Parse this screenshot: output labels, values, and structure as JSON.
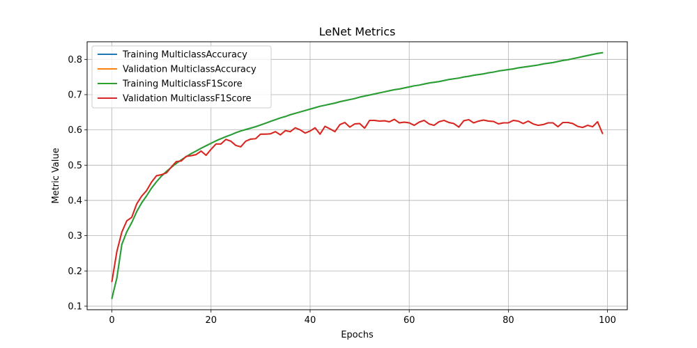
{
  "chart_data": {
    "type": "line",
    "title": "LeNet Metrics",
    "xlabel": "Epochs",
    "ylabel": "Metric Value",
    "xlim": [
      -5,
      104
    ],
    "ylim": [
      0.09,
      0.85
    ],
    "xticks": [
      0,
      20,
      40,
      60,
      80,
      100
    ],
    "yticks": [
      0.1,
      0.2,
      0.3,
      0.4,
      0.5,
      0.6,
      0.7,
      0.8
    ],
    "grid": true,
    "legend_position": "top-left",
    "x": [
      0,
      1,
      2,
      3,
      4,
      5,
      6,
      7,
      8,
      9,
      10,
      11,
      12,
      13,
      14,
      15,
      16,
      17,
      18,
      19,
      20,
      21,
      22,
      23,
      24,
      25,
      26,
      27,
      28,
      29,
      30,
      31,
      32,
      33,
      34,
      35,
      36,
      37,
      38,
      39,
      40,
      41,
      42,
      43,
      44,
      45,
      46,
      47,
      48,
      49,
      50,
      51,
      52,
      53,
      54,
      55,
      56,
      57,
      58,
      59,
      60,
      61,
      62,
      63,
      64,
      65,
      66,
      67,
      68,
      69,
      70,
      71,
      72,
      73,
      74,
      75,
      76,
      77,
      78,
      79,
      80,
      81,
      82,
      83,
      84,
      85,
      86,
      87,
      88,
      89,
      90,
      91,
      92,
      93,
      94,
      95,
      96,
      97,
      98,
      99
    ],
    "series": [
      {
        "name": "Training MulticlassAccuracy",
        "color": "#1f77b4",
        "values": [
          0.122,
          0.18,
          0.275,
          0.311,
          0.337,
          0.368,
          0.393,
          0.413,
          0.435,
          0.453,
          0.469,
          0.482,
          0.494,
          0.505,
          0.515,
          0.524,
          0.533,
          0.54,
          0.548,
          0.555,
          0.562,
          0.569,
          0.575,
          0.581,
          0.586,
          0.592,
          0.597,
          0.601,
          0.605,
          0.609,
          0.614,
          0.619,
          0.624,
          0.629,
          0.634,
          0.638,
          0.643,
          0.647,
          0.651,
          0.655,
          0.659,
          0.663,
          0.667,
          0.67,
          0.673,
          0.676,
          0.68,
          0.683,
          0.686,
          0.689,
          0.693,
          0.696,
          0.699,
          0.702,
          0.705,
          0.708,
          0.711,
          0.714,
          0.716,
          0.719,
          0.722,
          0.725,
          0.727,
          0.73,
          0.733,
          0.735,
          0.737,
          0.74,
          0.743,
          0.745,
          0.747,
          0.75,
          0.752,
          0.755,
          0.757,
          0.759,
          0.762,
          0.764,
          0.767,
          0.769,
          0.771,
          0.773,
          0.776,
          0.778,
          0.78,
          0.782,
          0.784,
          0.787,
          0.789,
          0.791,
          0.794,
          0.797,
          0.799,
          0.802,
          0.805,
          0.808,
          0.811,
          0.814,
          0.817,
          0.819
        ]
      },
      {
        "name": "Validation MulticlassAccuracy",
        "color": "#ff7f0e",
        "values": [
          0.17,
          0.255,
          0.31,
          0.342,
          0.352,
          0.39,
          0.412,
          0.428,
          0.452,
          0.47,
          0.473,
          0.478,
          0.495,
          0.51,
          0.512,
          0.525,
          0.527,
          0.53,
          0.54,
          0.528,
          0.545,
          0.56,
          0.56,
          0.573,
          0.568,
          0.556,
          0.552,
          0.568,
          0.574,
          0.575,
          0.588,
          0.588,
          0.589,
          0.595,
          0.586,
          0.598,
          0.595,
          0.606,
          0.6,
          0.591,
          0.597,
          0.606,
          0.588,
          0.61,
          0.603,
          0.595,
          0.615,
          0.621,
          0.608,
          0.617,
          0.618,
          0.605,
          0.627,
          0.627,
          0.625,
          0.626,
          0.623,
          0.63,
          0.62,
          0.622,
          0.62,
          0.613,
          0.622,
          0.627,
          0.617,
          0.613,
          0.623,
          0.627,
          0.621,
          0.618,
          0.608,
          0.626,
          0.629,
          0.62,
          0.625,
          0.628,
          0.625,
          0.624,
          0.617,
          0.62,
          0.62,
          0.627,
          0.625,
          0.618,
          0.625,
          0.617,
          0.613,
          0.615,
          0.62,
          0.62,
          0.609,
          0.621,
          0.621,
          0.618,
          0.61,
          0.607,
          0.613,
          0.609,
          0.623,
          0.59
        ]
      },
      {
        "name": "Training MulticlassF1Score",
        "color": "#2ca02c",
        "values": [
          0.122,
          0.18,
          0.275,
          0.311,
          0.337,
          0.368,
          0.393,
          0.413,
          0.435,
          0.453,
          0.469,
          0.482,
          0.494,
          0.505,
          0.515,
          0.524,
          0.533,
          0.54,
          0.548,
          0.555,
          0.562,
          0.569,
          0.575,
          0.581,
          0.586,
          0.592,
          0.597,
          0.601,
          0.605,
          0.609,
          0.614,
          0.619,
          0.624,
          0.629,
          0.634,
          0.638,
          0.643,
          0.647,
          0.651,
          0.655,
          0.659,
          0.663,
          0.667,
          0.67,
          0.673,
          0.676,
          0.68,
          0.683,
          0.686,
          0.689,
          0.693,
          0.696,
          0.699,
          0.702,
          0.705,
          0.708,
          0.711,
          0.714,
          0.716,
          0.719,
          0.722,
          0.725,
          0.727,
          0.73,
          0.733,
          0.735,
          0.737,
          0.74,
          0.743,
          0.745,
          0.747,
          0.75,
          0.752,
          0.755,
          0.757,
          0.759,
          0.762,
          0.764,
          0.767,
          0.769,
          0.771,
          0.773,
          0.776,
          0.778,
          0.78,
          0.782,
          0.784,
          0.787,
          0.789,
          0.791,
          0.794,
          0.797,
          0.799,
          0.802,
          0.805,
          0.808,
          0.811,
          0.814,
          0.817,
          0.819
        ]
      },
      {
        "name": "Validation MulticlassF1Score",
        "color": "#d62728",
        "values": [
          0.17,
          0.255,
          0.31,
          0.342,
          0.352,
          0.39,
          0.412,
          0.428,
          0.452,
          0.47,
          0.473,
          0.478,
          0.495,
          0.51,
          0.512,
          0.525,
          0.527,
          0.53,
          0.54,
          0.528,
          0.545,
          0.56,
          0.56,
          0.573,
          0.568,
          0.556,
          0.552,
          0.568,
          0.574,
          0.575,
          0.588,
          0.588,
          0.589,
          0.595,
          0.586,
          0.598,
          0.595,
          0.606,
          0.6,
          0.591,
          0.597,
          0.606,
          0.588,
          0.61,
          0.603,
          0.595,
          0.615,
          0.621,
          0.608,
          0.617,
          0.618,
          0.605,
          0.627,
          0.627,
          0.625,
          0.626,
          0.623,
          0.63,
          0.62,
          0.622,
          0.62,
          0.613,
          0.622,
          0.627,
          0.617,
          0.613,
          0.623,
          0.627,
          0.621,
          0.618,
          0.608,
          0.626,
          0.629,
          0.62,
          0.625,
          0.628,
          0.625,
          0.624,
          0.617,
          0.62,
          0.62,
          0.627,
          0.625,
          0.618,
          0.625,
          0.617,
          0.613,
          0.615,
          0.62,
          0.62,
          0.609,
          0.621,
          0.621,
          0.618,
          0.61,
          0.607,
          0.613,
          0.609,
          0.623,
          0.59
        ]
      }
    ]
  }
}
